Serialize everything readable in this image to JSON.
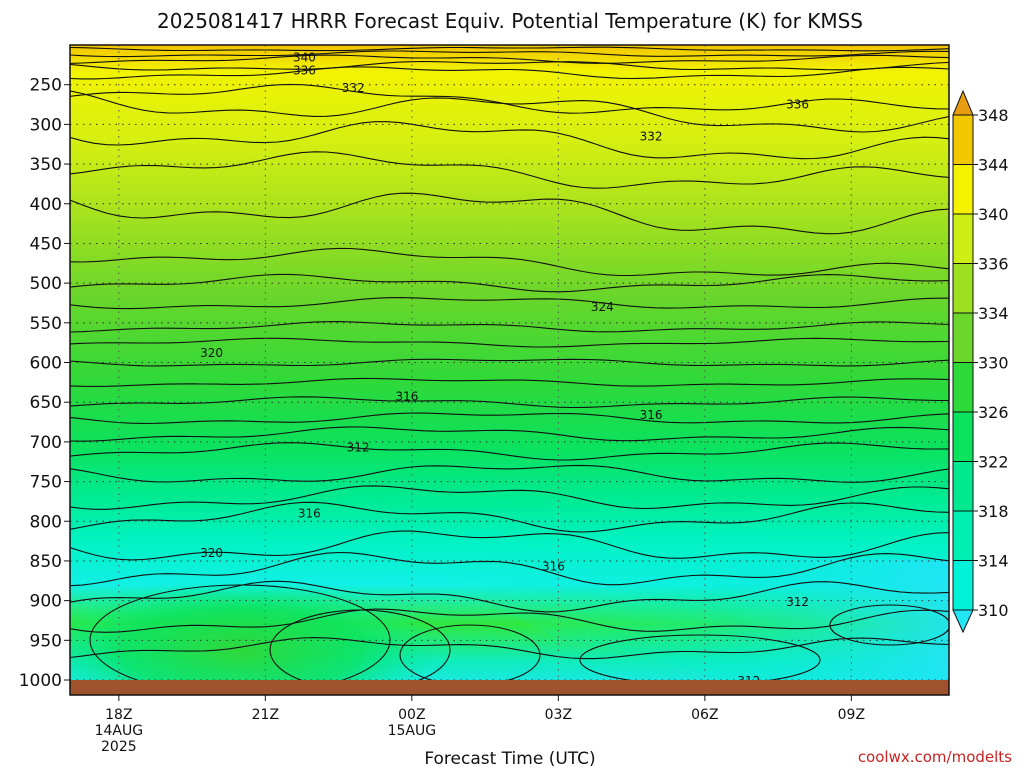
{
  "chart_data": {
    "type": "heatmap",
    "title": "2025081417 HRRR Forecast Equiv. Potential Temperature (K) for KMSS",
    "xlabel": "Forecast Time (UTC)",
    "credit": "coolwx.com/modelts",
    "pressure_ticks": [
      "250",
      "300",
      "350",
      "400",
      "450",
      "500",
      "550",
      "600",
      "650",
      "700",
      "750",
      "800",
      "850",
      "900",
      "950",
      "1000"
    ],
    "time_ticks": [
      {
        "label": "18Z",
        "sub1": "14AUG",
        "sub2": "2025",
        "hour": 0
      },
      {
        "label": "21Z",
        "sub1": "",
        "sub2": "",
        "hour": 3
      },
      {
        "label": "00Z",
        "sub1": "15AUG",
        "sub2": "",
        "hour": 6
      },
      {
        "label": "03Z",
        "sub1": "",
        "sub2": "",
        "hour": 9
      },
      {
        "label": "06Z",
        "sub1": "",
        "sub2": "",
        "hour": 12
      },
      {
        "label": "09Z",
        "sub1": "",
        "sub2": "",
        "hour": 15
      }
    ],
    "x_range_hours": [
      -1,
      17
    ],
    "y_range_hpa": [
      200,
      1000
    ],
    "colorbar_levels": [
      "310",
      "314",
      "318",
      "322",
      "326",
      "330",
      "334",
      "336",
      "340",
      "344",
      "348"
    ],
    "colorbar_colors": [
      "#21e6f5",
      "#00f2d8",
      "#00f0b4",
      "#00e890",
      "#0be25e",
      "#2ed93a",
      "#6cd62a",
      "#9de01f",
      "#ccee14",
      "#f4f200",
      "#f2c800",
      "#e89c10"
    ],
    "contour_labels": [
      {
        "text": "340",
        "hour": 3.8,
        "hpa": 216
      },
      {
        "text": "336",
        "hour": 3.8,
        "hpa": 232
      },
      {
        "text": "332",
        "hour": 4.8,
        "hpa": 254
      },
      {
        "text": "336",
        "hour": 13.9,
        "hpa": 275
      },
      {
        "text": "332",
        "hour": 10.9,
        "hpa": 315
      },
      {
        "text": "324",
        "hour": 9.9,
        "hpa": 530
      },
      {
        "text": "320",
        "hour": 1.9,
        "hpa": 588
      },
      {
        "text": "316",
        "hour": 5.9,
        "hpa": 643
      },
      {
        "text": "316",
        "hour": 10.9,
        "hpa": 666
      },
      {
        "text": "312",
        "hour": 4.9,
        "hpa": 707
      },
      {
        "text": "316",
        "hour": 3.9,
        "hpa": 790
      },
      {
        "text": "320",
        "hour": 1.9,
        "hpa": 840
      },
      {
        "text": "316",
        "hour": 8.9,
        "hpa": 857
      },
      {
        "text": "312",
        "hour": 13.9,
        "hpa": 902
      },
      {
        "text": "312",
        "hour": 12.9,
        "hpa": 1001
      }
    ]
  }
}
